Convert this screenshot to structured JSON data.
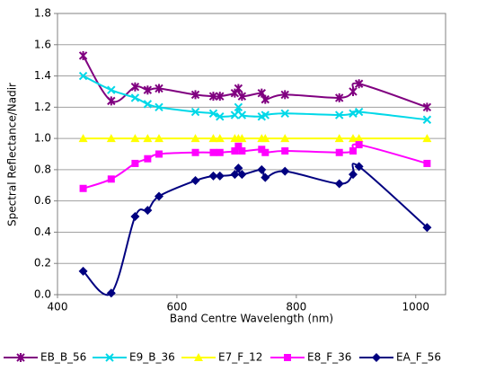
{
  "chart_data": {
    "type": "line",
    "x_label": "Band Centre Wavelength (nm)",
    "y_label": "Spectral Reflectance/Nadir",
    "x": [
      443,
      490,
      530,
      551,
      570,
      631,
      661,
      672,
      697,
      703,
      709,
      742,
      748,
      781,
      872,
      895,
      905,
      1019
    ],
    "series": [
      {
        "name": "EB_B_56",
        "color": "#800080",
        "marker": "star",
        "values": [
          1.53,
          1.24,
          1.33,
          1.31,
          1.32,
          1.28,
          1.27,
          1.27,
          1.29,
          1.32,
          1.27,
          1.29,
          1.25,
          1.28,
          1.26,
          1.3,
          1.35,
          1.2
        ]
      },
      {
        "name": "E9_B_36",
        "color": "#00d8e8",
        "marker": "x",
        "values": [
          1.4,
          1.31,
          1.26,
          1.22,
          1.2,
          1.17,
          1.16,
          1.14,
          1.15,
          1.2,
          1.15,
          1.14,
          1.15,
          1.16,
          1.15,
          1.16,
          1.17,
          1.12
        ]
      },
      {
        "name": "E7_F_12",
        "color": "#ffff00",
        "marker": "triangle",
        "values": [
          1.0,
          1.0,
          1.0,
          1.0,
          1.0,
          1.0,
          1.0,
          1.0,
          1.0,
          1.0,
          1.0,
          1.0,
          1.0,
          1.0,
          1.0,
          1.0,
          1.0,
          1.0
        ]
      },
      {
        "name": "E8_F_36",
        "color": "#ff00ff",
        "marker": "square",
        "values": [
          0.68,
          0.74,
          0.84,
          0.87,
          0.9,
          0.91,
          0.91,
          0.91,
          0.92,
          0.95,
          0.92,
          0.93,
          0.91,
          0.92,
          0.91,
          0.92,
          0.96,
          0.84
        ]
      },
      {
        "name": "EA_F_56",
        "color": "#000080",
        "marker": "diamond",
        "values": [
          0.15,
          0.01,
          0.5,
          0.54,
          0.63,
          0.73,
          0.76,
          0.76,
          0.77,
          0.81,
          0.77,
          0.8,
          0.75,
          0.79,
          0.71,
          0.77,
          0.82,
          0.43
        ]
      }
    ],
    "xlim": [
      400,
      1050
    ],
    "xticks": [
      400,
      600,
      800,
      1000
    ],
    "ylim": [
      0,
      1.8
    ],
    "yticks": [
      {
        "value": 0,
        "label": "0.0"
      },
      0.2,
      0.4,
      0.6,
      0.8,
      {
        "value": 1,
        "label": "1.0"
      },
      1.2,
      1.4,
      1.6,
      1.8
    ],
    "grid": true,
    "smooth": true,
    "legend": "bottom"
  }
}
